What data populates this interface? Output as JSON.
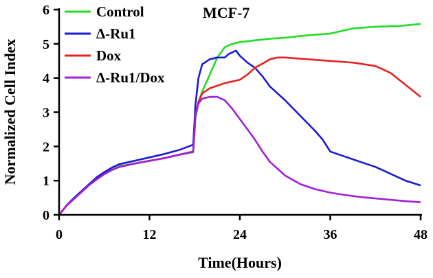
{
  "chart_data": {
    "type": "line",
    "title": "MCF-7",
    "xlabel": "Time(Hours)",
    "ylabel": "Normalized Cell Index",
    "xlim": [
      0,
      48
    ],
    "ylim": [
      0,
      6
    ],
    "xticks": [
      0,
      12,
      24,
      36,
      48
    ],
    "yticks": [
      0,
      1,
      2,
      3,
      4,
      5,
      6
    ],
    "grid": false,
    "legend_position": "top-left",
    "series": [
      {
        "name": "Control",
        "color": "#22dd22",
        "points": [
          [
            0,
            0
          ],
          [
            1,
            0.28
          ],
          [
            2,
            0.48
          ],
          [
            3,
            0.68
          ],
          [
            4,
            0.88
          ],
          [
            5,
            1.05
          ],
          [
            6,
            1.2
          ],
          [
            7,
            1.32
          ],
          [
            8,
            1.42
          ],
          [
            10,
            1.5
          ],
          [
            12,
            1.58
          ],
          [
            14,
            1.66
          ],
          [
            16,
            1.76
          ],
          [
            17.8,
            1.83
          ],
          [
            18.1,
            2.8
          ],
          [
            18.5,
            3.3
          ],
          [
            19,
            3.6
          ],
          [
            20,
            4.1
          ],
          [
            21,
            4.6
          ],
          [
            22,
            4.9
          ],
          [
            23,
            5.0
          ],
          [
            24,
            5.05
          ],
          [
            26,
            5.1
          ],
          [
            28,
            5.15
          ],
          [
            30,
            5.18
          ],
          [
            33,
            5.25
          ],
          [
            36,
            5.3
          ],
          [
            39,
            5.45
          ],
          [
            42,
            5.5
          ],
          [
            45,
            5.52
          ],
          [
            48,
            5.58
          ]
        ]
      },
      {
        "name": "Δ-Ru1",
        "color": "#1a1ad4",
        "points": [
          [
            0,
            0
          ],
          [
            1,
            0.28
          ],
          [
            2,
            0.5
          ],
          [
            3,
            0.7
          ],
          [
            4,
            0.9
          ],
          [
            5,
            1.1
          ],
          [
            6,
            1.25
          ],
          [
            7,
            1.38
          ],
          [
            8,
            1.48
          ],
          [
            10,
            1.58
          ],
          [
            12,
            1.68
          ],
          [
            14,
            1.78
          ],
          [
            16,
            1.9
          ],
          [
            17.8,
            2.05
          ],
          [
            18.1,
            3.2
          ],
          [
            18.5,
            4.0
          ],
          [
            19,
            4.4
          ],
          [
            20,
            4.55
          ],
          [
            21,
            4.6
          ],
          [
            22,
            4.6
          ],
          [
            22.5,
            4.7
          ],
          [
            23,
            4.75
          ],
          [
            23.5,
            4.8
          ],
          [
            24,
            4.65
          ],
          [
            25,
            4.45
          ],
          [
            26,
            4.3
          ],
          [
            27,
            4.05
          ],
          [
            28,
            3.75
          ],
          [
            30,
            3.35
          ],
          [
            32,
            2.9
          ],
          [
            34,
            2.45
          ],
          [
            35,
            2.2
          ],
          [
            36,
            1.85
          ],
          [
            38,
            1.7
          ],
          [
            40,
            1.55
          ],
          [
            42,
            1.4
          ],
          [
            44,
            1.2
          ],
          [
            46,
            1.0
          ],
          [
            48,
            0.86
          ]
        ]
      },
      {
        "name": "Dox",
        "color": "#e82020",
        "points": [
          [
            0,
            0
          ],
          [
            1,
            0.27
          ],
          [
            2,
            0.47
          ],
          [
            3,
            0.67
          ],
          [
            4,
            0.87
          ],
          [
            5,
            1.04
          ],
          [
            6,
            1.19
          ],
          [
            7,
            1.31
          ],
          [
            8,
            1.4
          ],
          [
            10,
            1.5
          ],
          [
            12,
            1.58
          ],
          [
            14,
            1.66
          ],
          [
            16,
            1.76
          ],
          [
            17.8,
            1.85
          ],
          [
            18.1,
            2.9
          ],
          [
            18.5,
            3.3
          ],
          [
            19,
            3.55
          ],
          [
            20,
            3.7
          ],
          [
            22,
            3.85
          ],
          [
            24,
            3.95
          ],
          [
            25,
            4.1
          ],
          [
            26,
            4.3
          ],
          [
            27,
            4.42
          ],
          [
            28,
            4.55
          ],
          [
            29,
            4.6
          ],
          [
            30,
            4.6
          ],
          [
            33,
            4.55
          ],
          [
            36,
            4.5
          ],
          [
            39,
            4.45
          ],
          [
            42,
            4.35
          ],
          [
            44,
            4.15
          ],
          [
            46,
            3.8
          ],
          [
            48,
            3.45
          ]
        ]
      },
      {
        "name": "Δ-Ru1/Dox",
        "color": "#a020d8",
        "points": [
          [
            0,
            0
          ],
          [
            1,
            0.27
          ],
          [
            2,
            0.47
          ],
          [
            3,
            0.67
          ],
          [
            4,
            0.87
          ],
          [
            5,
            1.04
          ],
          [
            6,
            1.19
          ],
          [
            7,
            1.31
          ],
          [
            8,
            1.4
          ],
          [
            10,
            1.5
          ],
          [
            12,
            1.58
          ],
          [
            14,
            1.66
          ],
          [
            16,
            1.76
          ],
          [
            17.8,
            1.85
          ],
          [
            18.1,
            2.9
          ],
          [
            18.5,
            3.25
          ],
          [
            19,
            3.4
          ],
          [
            20,
            3.45
          ],
          [
            21,
            3.45
          ],
          [
            22,
            3.35
          ],
          [
            23,
            3.1
          ],
          [
            24,
            2.8
          ],
          [
            25,
            2.5
          ],
          [
            26,
            2.2
          ],
          [
            27,
            1.85
          ],
          [
            28,
            1.55
          ],
          [
            30,
            1.15
          ],
          [
            32,
            0.9
          ],
          [
            34,
            0.75
          ],
          [
            36,
            0.65
          ],
          [
            38,
            0.58
          ],
          [
            40,
            0.52
          ],
          [
            42,
            0.48
          ],
          [
            44,
            0.44
          ],
          [
            46,
            0.4
          ],
          [
            48,
            0.37
          ]
        ]
      }
    ]
  }
}
